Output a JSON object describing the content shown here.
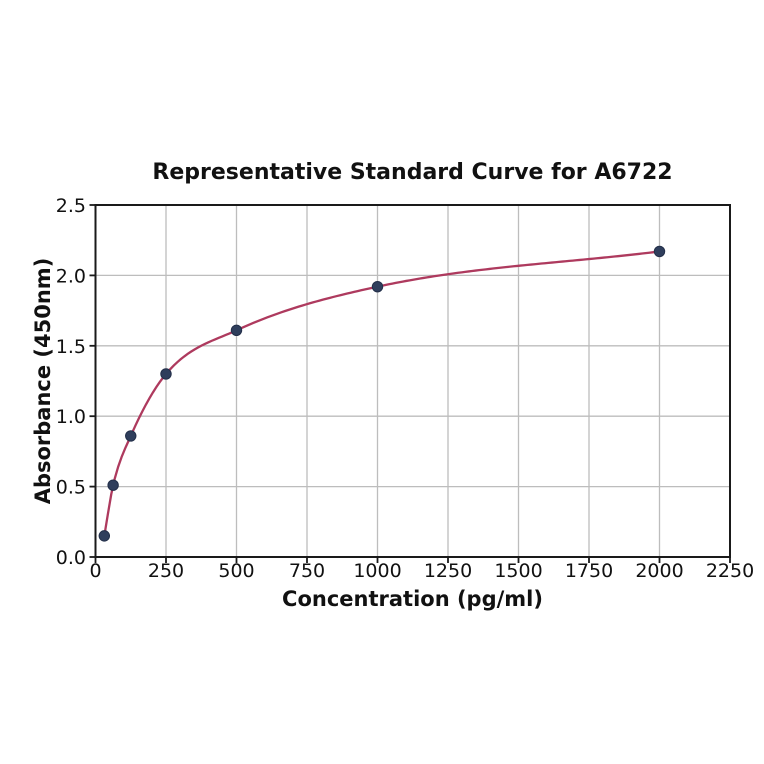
{
  "chart_data": {
    "type": "line",
    "title": "Representative Standard Curve for A6722",
    "xlabel": "Concentration (pg/ml)",
    "ylabel": "Absorbance (450nm)",
    "x": [
      31.25,
      62.5,
      125,
      250,
      500,
      1000,
      2000
    ],
    "y": [
      0.15,
      0.51,
      0.86,
      1.3,
      1.61,
      1.92,
      2.17
    ],
    "xlim": [
      0,
      2250
    ],
    "ylim": [
      0.0,
      2.5
    ],
    "xticks": [
      "0",
      "250",
      "500",
      "750",
      "1000",
      "1250",
      "1500",
      "1750",
      "2000",
      "2250"
    ],
    "yticks": [
      "0.0",
      "0.5",
      "1.0",
      "1.5",
      "2.0",
      "2.5"
    ],
    "grid": true,
    "legend_position": "none",
    "colors": {
      "line": "#ae3a5e",
      "marker": "#2f3e5c",
      "marker_edge": "#232f49",
      "grid": "#bdbdbd",
      "axis": "#1a1a1a",
      "text": "#111111",
      "background": "#ffffff"
    }
  }
}
